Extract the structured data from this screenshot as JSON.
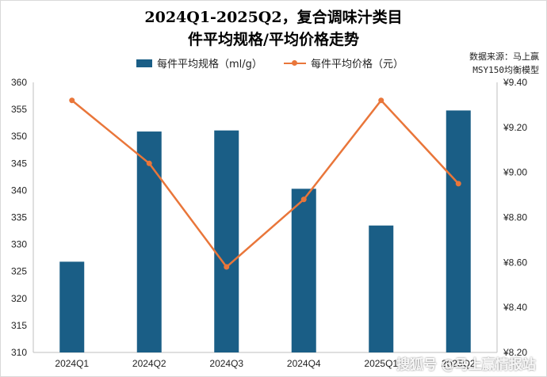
{
  "chart_data": {
    "type": "bar",
    "title_lines": [
      "2024Q1-2025Q2，复合调味汁类目",
      "件平均规格/平均价格走势"
    ],
    "categories": [
      "2024Q1",
      "2024Q2",
      "2024Q3",
      "2024Q4",
      "2025Q1",
      "2025Q2"
    ],
    "series": [
      {
        "name": "每件平均规格（ml/g）",
        "kind": "bar",
        "axis": "left",
        "values": [
          326.8,
          350.9,
          351.1,
          340.3,
          333.5,
          354.8
        ]
      },
      {
        "name": "每件平均价格（元）",
        "kind": "line",
        "axis": "right",
        "values": [
          9.32,
          9.04,
          8.58,
          8.88,
          9.32,
          8.95
        ]
      }
    ],
    "y_left": {
      "lim": [
        310,
        360
      ],
      "ticks": [
        "310",
        "315",
        "320",
        "325",
        "330",
        "335",
        "340",
        "345",
        "350",
        "355",
        "360"
      ]
    },
    "y_right": {
      "lim": [
        8.2,
        9.4
      ],
      "ticks": [
        "¥8.20",
        "¥8.40",
        "¥8.60",
        "¥8.80",
        "¥9.00",
        "¥9.20",
        "¥9.40"
      ]
    },
    "colors": {
      "bar": "#1a5e86",
      "line": "#e9763a",
      "axis": "#bfbfbf"
    },
    "legend_position": "top"
  },
  "source_lines": [
    "数据来源：马上赢",
    "MSY150均衡模型"
  ],
  "watermark": "搜狐号 @马上赢情报站"
}
